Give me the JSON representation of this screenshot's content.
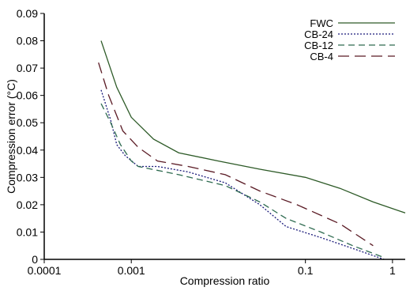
{
  "chart_data": {
    "type": "line",
    "title": "",
    "xlabel": "Compression ratio",
    "ylabel": "Compression error (°C)",
    "x_scale": "log",
    "xlim": [
      0.0001,
      1.4
    ],
    "ylim": [
      0,
      0.09
    ],
    "x_ticks": [
      {
        "value": 0.0001,
        "label": "0.0001"
      },
      {
        "value": 0.001,
        "label": "0.001"
      },
      {
        "value": 0.1,
        "label": "0.1"
      },
      {
        "value": 1,
        "label": "1"
      }
    ],
    "y_ticks": [
      {
        "value": 0,
        "label": "0"
      },
      {
        "value": 0.01,
        "label": "0.01"
      },
      {
        "value": 0.02,
        "label": "0.02"
      },
      {
        "value": 0.03,
        "label": "0.03"
      },
      {
        "value": 0.04,
        "label": "0.04"
      },
      {
        "value": 0.05,
        "label": "0.05"
      },
      {
        "value": 0.06,
        "label": "0.06"
      },
      {
        "value": 0.07,
        "label": "0.07"
      },
      {
        "value": 0.08,
        "label": "0.08"
      },
      {
        "value": 0.09,
        "label": "0.09"
      }
    ],
    "grid": false,
    "legend_position": "top-right",
    "series": [
      {
        "name": "FWC",
        "color": "#2d5a27",
        "dash": "solid",
        "points": [
          [
            0.00045,
            0.08
          ],
          [
            0.00068,
            0.063
          ],
          [
            0.001,
            0.052
          ],
          [
            0.0018,
            0.044
          ],
          [
            0.0035,
            0.039
          ],
          [
            0.01,
            0.036
          ],
          [
            0.03,
            0.033
          ],
          [
            0.1,
            0.03
          ],
          [
            0.25,
            0.026
          ],
          [
            0.6,
            0.021
          ],
          [
            1.4,
            0.017
          ]
        ]
      },
      {
        "name": "CB-24",
        "color": "#1a1a7a",
        "dash": "dotted",
        "points": [
          [
            0.00045,
            0.062
          ],
          [
            0.00058,
            0.051
          ],
          [
            0.00068,
            0.042
          ],
          [
            0.00085,
            0.038
          ],
          [
            0.0012,
            0.034
          ],
          [
            0.002,
            0.034
          ],
          [
            0.0045,
            0.032
          ],
          [
            0.012,
            0.028
          ],
          [
            0.03,
            0.02
          ],
          [
            0.06,
            0.012
          ],
          [
            0.15,
            0.008
          ],
          [
            0.35,
            0.004
          ],
          [
            0.8,
            0.0
          ]
        ]
      },
      {
        "name": "CB-12",
        "color": "#2d6a4f",
        "dash": "medium-dash",
        "points": [
          [
            0.00045,
            0.057
          ],
          [
            0.00058,
            0.05
          ],
          [
            0.00075,
            0.042
          ],
          [
            0.001,
            0.036
          ],
          [
            0.0012,
            0.034
          ],
          [
            0.0035,
            0.031
          ],
          [
            0.012,
            0.027
          ],
          [
            0.03,
            0.021
          ],
          [
            0.06,
            0.015
          ],
          [
            0.15,
            0.01
          ],
          [
            0.35,
            0.005
          ],
          [
            0.75,
            0.001
          ]
        ]
      },
      {
        "name": "CB-4",
        "color": "#5a1a24",
        "dash": "long-dash",
        "points": [
          [
            0.00042,
            0.072
          ],
          [
            0.00055,
            0.06
          ],
          [
            0.0008,
            0.047
          ],
          [
            0.0012,
            0.041
          ],
          [
            0.002,
            0.036
          ],
          [
            0.0045,
            0.034
          ],
          [
            0.012,
            0.031
          ],
          [
            0.03,
            0.025
          ],
          [
            0.08,
            0.02
          ],
          [
            0.25,
            0.013
          ],
          [
            0.6,
            0.005
          ]
        ]
      }
    ]
  }
}
